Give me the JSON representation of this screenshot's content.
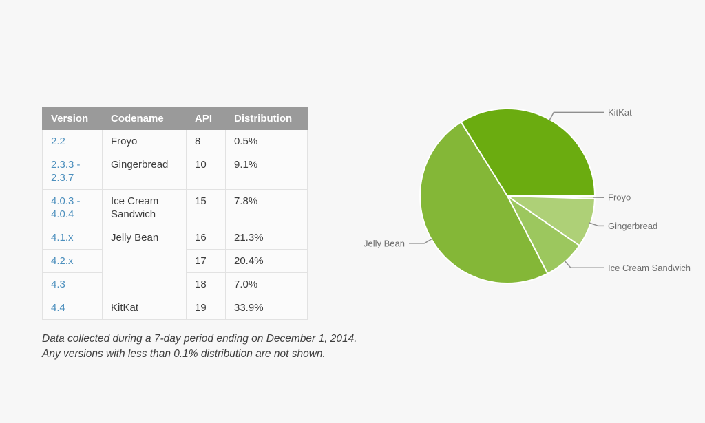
{
  "page": {
    "background_color": "#f7f7f7"
  },
  "table": {
    "headers": [
      "Version",
      "Codename",
      "API",
      "Distribution"
    ],
    "header_bg": "#9a9a9a",
    "link_color": "#4c8fbd",
    "rows": [
      {
        "version": "2.2",
        "codename": "Froyo",
        "codename_rowspan": 1,
        "api": "8",
        "distribution": "0.5%"
      },
      {
        "version": "2.3.3 - 2.3.7",
        "codename": "Gingerbread",
        "codename_rowspan": 1,
        "api": "10",
        "distribution": "9.1%"
      },
      {
        "version": "4.0.3 - 4.0.4",
        "codename": "Ice Cream Sandwich",
        "codename_rowspan": 1,
        "api": "15",
        "distribution": "7.8%"
      },
      {
        "version": "4.1.x",
        "codename": "Jelly Bean",
        "codename_rowspan": 3,
        "api": "16",
        "distribution": "21.3%"
      },
      {
        "version": "4.2.x",
        "codename": null,
        "api": "17",
        "distribution": "20.4%"
      },
      {
        "version": "4.3",
        "codename": null,
        "api": "18",
        "distribution": "7.0%"
      },
      {
        "version": "4.4",
        "codename": "KitKat",
        "codename_rowspan": 1,
        "api": "19",
        "distribution": "33.9%"
      }
    ]
  },
  "footnote": {
    "line1": "Data collected during a 7-day period ending on December 1, 2014.",
    "line2": "Any versions with less than 0.1% distribution are not shown."
  },
  "chart_data": {
    "type": "pie",
    "title": "",
    "start_angle_deg": 0,
    "direction": "clockwise",
    "labels": "outside-with-leader-lines",
    "slice_border_color": "#ffffff",
    "leader_line_color": "#8f8f8f",
    "label_text_color": "#6e6e6e",
    "slices": [
      {
        "label": "Froyo",
        "value": 0.5,
        "color": "#d2e5ad"
      },
      {
        "label": "Gingerbread",
        "value": 9.1,
        "color": "#aed077"
      },
      {
        "label": "Ice Cream Sandwich",
        "value": 7.8,
        "color": "#9cc75e"
      },
      {
        "label": "Jelly Bean",
        "value": 48.7,
        "color": "#84b737"
      },
      {
        "label": "KitKat",
        "value": 33.9,
        "color": "#6bac10"
      }
    ]
  }
}
